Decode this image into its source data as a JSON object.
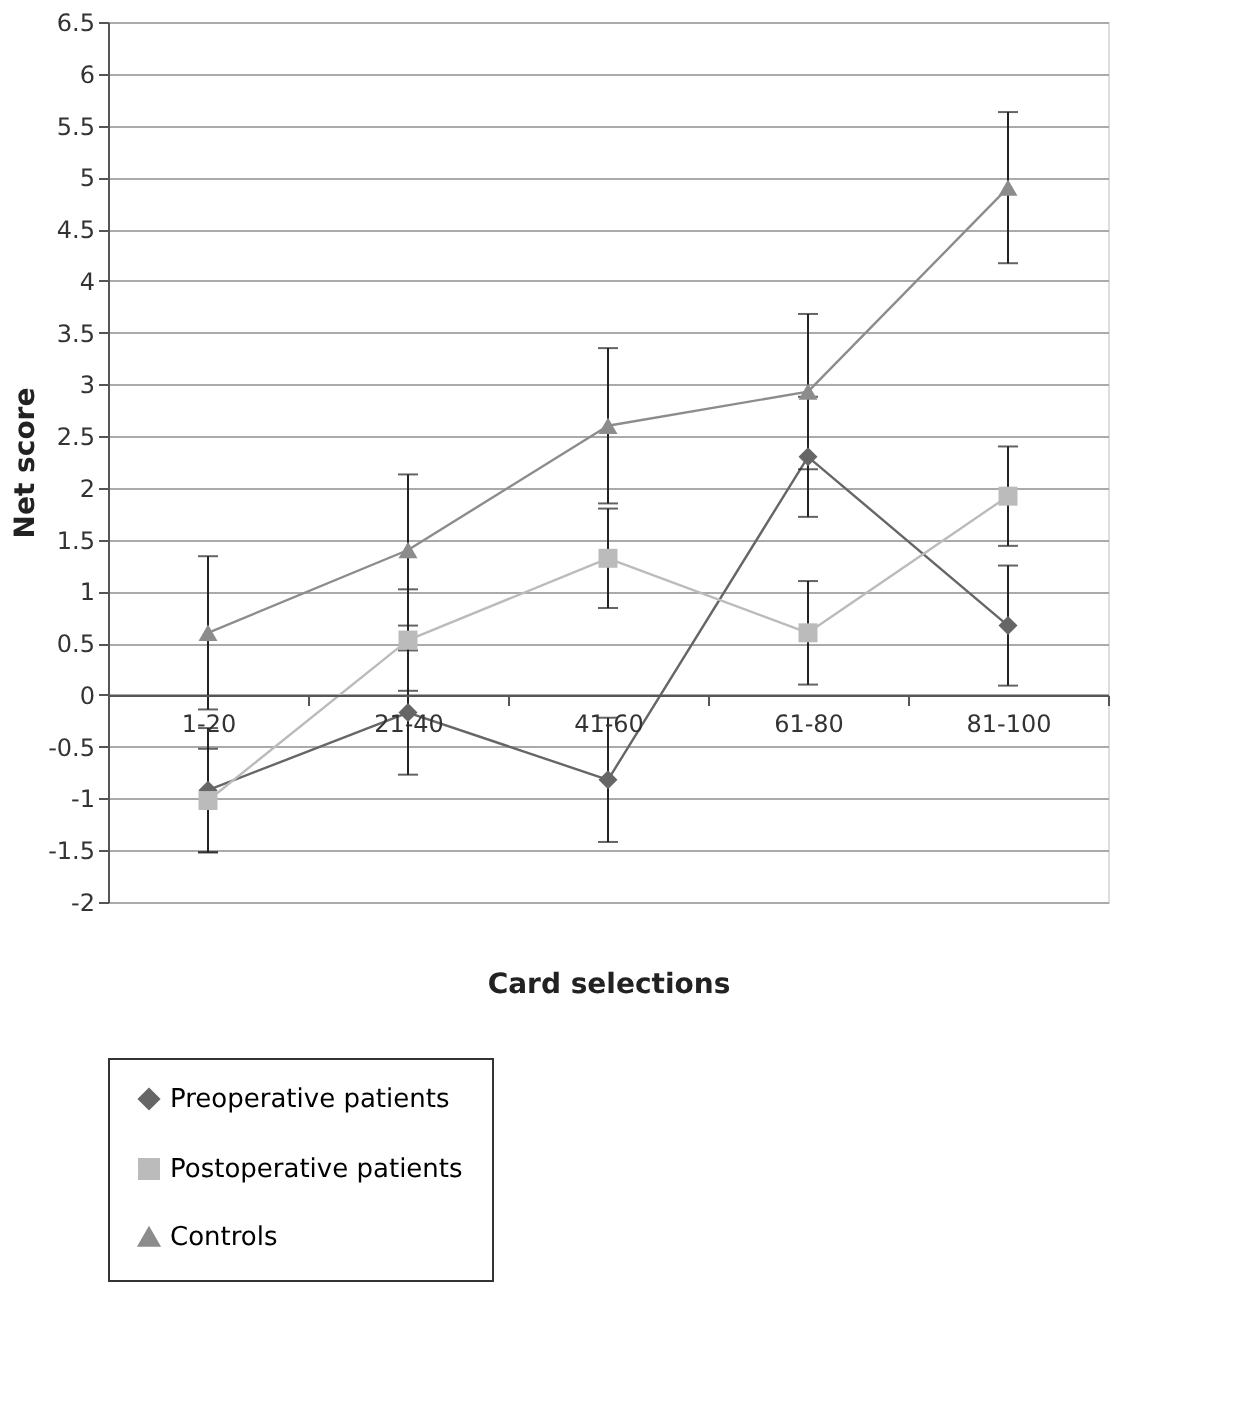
{
  "chart_data": {
    "type": "line",
    "xlabel": "Card selections",
    "ylabel": "Net score",
    "categories": [
      "1-20",
      "21-40",
      "41-60",
      "61-80",
      "81-100"
    ],
    "series": [
      {
        "name": "Preoperative patients",
        "color": "#666666",
        "marker": "diamond",
        "values": [
          -0.92,
          -0.17,
          -0.82,
          2.3,
          0.67
        ],
        "errors": [
          0.6,
          0.6,
          0.6,
          0.58,
          0.58
        ]
      },
      {
        "name": "Postoperative patients",
        "color": "#bbbbbb",
        "marker": "square",
        "values": [
          -1.02,
          0.53,
          1.32,
          0.6,
          1.92
        ],
        "errors": [
          0.5,
          0.49,
          0.48,
          0.5,
          0.48
        ]
      },
      {
        "name": "Controls",
        "color": "#8c8c8c",
        "marker": "triangle",
        "values": [
          0.6,
          1.4,
          2.6,
          2.93,
          4.9
        ],
        "errors": [
          0.74,
          0.73,
          0.75,
          0.75,
          0.73
        ]
      }
    ],
    "ylim": [
      -2,
      6.5
    ],
    "yticks": [
      -2,
      -1.5,
      -1,
      -0.5,
      0,
      0.5,
      1,
      1.5,
      2,
      2.5,
      3,
      3.5,
      4,
      4.5,
      5,
      5.5,
      6,
      6.5
    ],
    "grid": "y",
    "legend": "bottom",
    "line_style": "solid"
  }
}
